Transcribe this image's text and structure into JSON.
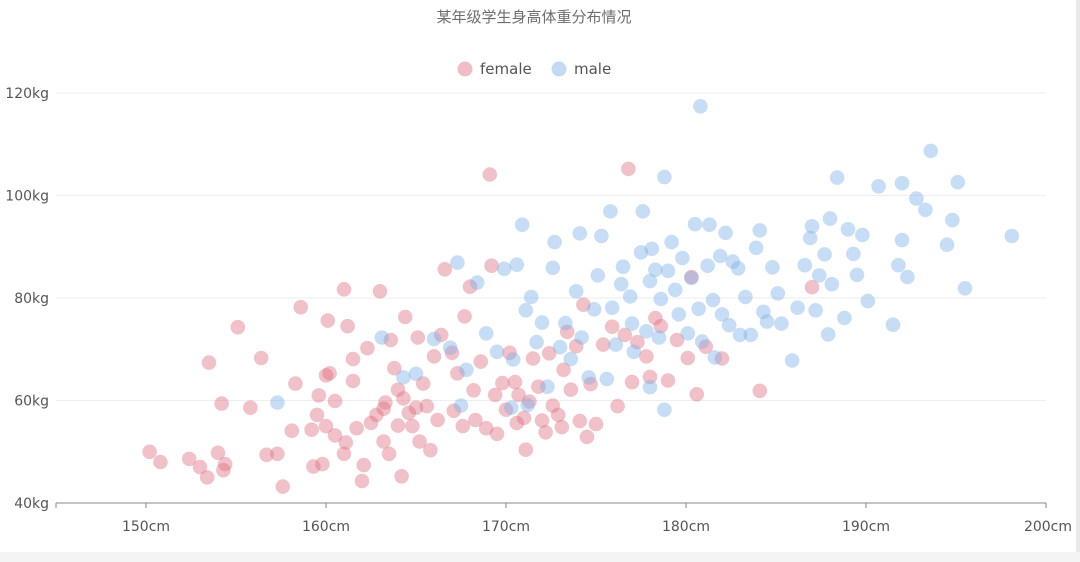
{
  "chart_data": {
    "type": "scatter",
    "title": "某年级学生身高体重分布情况",
    "legend_position": "top-center",
    "grid": true,
    "xlim": [
      145,
      200
    ],
    "ylim": [
      40,
      120
    ],
    "x_ticks": [
      150,
      160,
      170,
      180,
      190,
      200
    ],
    "y_ticks": [
      40,
      60,
      80,
      100,
      120
    ],
    "x_tick_labels": [
      "150cm",
      "160cm",
      "170cm",
      "180cm",
      "190cm",
      "200cm"
    ],
    "y_tick_labels": [
      "40kg",
      "60kg",
      "80kg",
      "100kg",
      "120kg"
    ],
    "colors": {
      "female": "#dd6b7f",
      "male": "#7aaee8"
    },
    "series": [
      {
        "name": "female",
        "color": "#dd6b7f",
        "points": [
          [
            150.2,
            50.0
          ],
          [
            150.8,
            48.0
          ],
          [
            152.4,
            48.6
          ],
          [
            153.0,
            47.0
          ],
          [
            153.4,
            45.0
          ],
          [
            154.0,
            49.8
          ],
          [
            154.4,
            47.6
          ],
          [
            154.3,
            46.4
          ],
          [
            153.5,
            67.4
          ],
          [
            154.2,
            59.4
          ],
          [
            155.1,
            74.3
          ],
          [
            155.8,
            58.6
          ],
          [
            156.4,
            68.3
          ],
          [
            156.7,
            49.4
          ],
          [
            157.3,
            49.6
          ],
          [
            157.6,
            43.2
          ],
          [
            158.1,
            54.1
          ],
          [
            158.3,
            63.3
          ],
          [
            158.6,
            78.2
          ],
          [
            159.2,
            54.3
          ],
          [
            159.3,
            47.1
          ],
          [
            159.5,
            57.2
          ],
          [
            159.6,
            61.0
          ],
          [
            159.8,
            47.6
          ],
          [
            160.0,
            64.9
          ],
          [
            160.2,
            65.3
          ],
          [
            160.0,
            55.0
          ],
          [
            160.1,
            75.6
          ],
          [
            160.5,
            53.2
          ],
          [
            160.5,
            59.9
          ],
          [
            161.0,
            81.7
          ],
          [
            161.2,
            74.5
          ],
          [
            161.0,
            49.6
          ],
          [
            161.1,
            51.8
          ],
          [
            161.5,
            68.1
          ],
          [
            161.5,
            63.8
          ],
          [
            161.7,
            54.6
          ],
          [
            162.0,
            44.3
          ],
          [
            162.3,
            70.2
          ],
          [
            162.1,
            47.4
          ],
          [
            162.5,
            55.6
          ],
          [
            162.8,
            57.2
          ],
          [
            163.0,
            81.3
          ],
          [
            163.2,
            52.0
          ],
          [
            163.2,
            58.4
          ],
          [
            163.3,
            59.6
          ],
          [
            163.5,
            49.6
          ],
          [
            163.6,
            71.8
          ],
          [
            163.8,
            66.3
          ],
          [
            164.0,
            55.1
          ],
          [
            164.0,
            62.1
          ],
          [
            164.2,
            45.2
          ],
          [
            164.3,
            60.4
          ],
          [
            164.4,
            76.3
          ],
          [
            164.6,
            57.6
          ],
          [
            164.8,
            55.0
          ],
          [
            165.0,
            58.6
          ],
          [
            165.1,
            72.3
          ],
          [
            165.2,
            52.0
          ],
          [
            165.4,
            63.3
          ],
          [
            165.6,
            58.9
          ],
          [
            165.8,
            50.3
          ],
          [
            166.0,
            68.6
          ],
          [
            166.2,
            56.2
          ],
          [
            166.4,
            72.8
          ],
          [
            166.6,
            85.6
          ],
          [
            167.0,
            69.3
          ],
          [
            167.1,
            58.0
          ],
          [
            167.3,
            65.3
          ],
          [
            167.6,
            55.0
          ],
          [
            167.7,
            76.4
          ],
          [
            168.0,
            82.2
          ],
          [
            168.2,
            62.0
          ],
          [
            168.3,
            56.2
          ],
          [
            168.6,
            67.6
          ],
          [
            168.9,
            54.6
          ],
          [
            169.1,
            104.1
          ],
          [
            169.2,
            86.3
          ],
          [
            169.4,
            61.1
          ],
          [
            169.5,
            53.5
          ],
          [
            169.8,
            63.4
          ],
          [
            170.0,
            58.2
          ],
          [
            170.2,
            69.3
          ],
          [
            170.5,
            63.6
          ],
          [
            170.6,
            55.6
          ],
          [
            170.7,
            61.1
          ],
          [
            171.0,
            56.6
          ],
          [
            171.1,
            50.4
          ],
          [
            171.3,
            59.8
          ],
          [
            171.5,
            68.2
          ],
          [
            171.8,
            62.7
          ],
          [
            172.0,
            56.1
          ],
          [
            172.2,
            53.8
          ],
          [
            172.4,
            69.2
          ],
          [
            172.6,
            59.0
          ],
          [
            172.9,
            57.2
          ],
          [
            173.1,
            54.8
          ],
          [
            173.2,
            66.0
          ],
          [
            173.4,
            73.4
          ],
          [
            173.6,
            62.1
          ],
          [
            173.9,
            70.6
          ],
          [
            174.1,
            56.0
          ],
          [
            174.3,
            78.7
          ],
          [
            174.5,
            52.9
          ],
          [
            174.7,
            63.2
          ],
          [
            175.0,
            55.4
          ],
          [
            175.4,
            70.9
          ],
          [
            175.9,
            74.4
          ],
          [
            176.2,
            58.9
          ],
          [
            176.6,
            72.8
          ],
          [
            176.8,
            105.2
          ],
          [
            177.0,
            63.6
          ],
          [
            177.3,
            71.4
          ],
          [
            177.8,
            68.6
          ],
          [
            178.0,
            64.6
          ],
          [
            178.3,
            76.1
          ],
          [
            178.6,
            74.5
          ],
          [
            179.0,
            63.9
          ],
          [
            179.5,
            71.8
          ],
          [
            180.1,
            68.3
          ],
          [
            180.3,
            84.1
          ],
          [
            180.6,
            61.2
          ],
          [
            181.1,
            70.5
          ],
          [
            182.0,
            68.2
          ],
          [
            184.1,
            61.9
          ],
          [
            187.0,
            82.1
          ]
        ]
      },
      {
        "name": "male",
        "color": "#7aaee8",
        "points": [
          [
            157.3,
            59.6
          ],
          [
            163.1,
            72.3
          ],
          [
            164.3,
            64.5
          ],
          [
            165.0,
            65.2
          ],
          [
            166.0,
            72.0
          ],
          [
            166.9,
            70.3
          ],
          [
            167.3,
            86.9
          ],
          [
            167.5,
            59.0
          ],
          [
            167.8,
            66.0
          ],
          [
            168.4,
            83.0
          ],
          [
            168.9,
            73.1
          ],
          [
            169.5,
            69.5
          ],
          [
            169.9,
            85.7
          ],
          [
            170.3,
            58.6
          ],
          [
            170.4,
            68.0
          ],
          [
            170.6,
            86.5
          ],
          [
            170.9,
            94.3
          ],
          [
            171.1,
            77.6
          ],
          [
            171.2,
            59.1
          ],
          [
            171.4,
            80.2
          ],
          [
            171.7,
            71.4
          ],
          [
            172.0,
            75.2
          ],
          [
            172.3,
            62.7
          ],
          [
            172.6,
            85.9
          ],
          [
            172.7,
            90.9
          ],
          [
            173.0,
            70.4
          ],
          [
            173.3,
            75.1
          ],
          [
            173.6,
            68.1
          ],
          [
            173.9,
            81.3
          ],
          [
            174.1,
            92.6
          ],
          [
            174.2,
            72.3
          ],
          [
            174.6,
            64.5
          ],
          [
            174.9,
            77.8
          ],
          [
            175.1,
            84.4
          ],
          [
            175.3,
            92.1
          ],
          [
            175.6,
            64.2
          ],
          [
            175.8,
            96.9
          ],
          [
            175.9,
            78.1
          ],
          [
            176.1,
            70.9
          ],
          [
            176.4,
            82.7
          ],
          [
            176.5,
            86.1
          ],
          [
            176.9,
            80.3
          ],
          [
            177.0,
            75.0
          ],
          [
            177.1,
            69.5
          ],
          [
            177.5,
            88.9
          ],
          [
            177.6,
            96.9
          ],
          [
            177.8,
            73.5
          ],
          [
            178.0,
            83.3
          ],
          [
            178.0,
            62.6
          ],
          [
            178.1,
            89.6
          ],
          [
            178.3,
            85.5
          ],
          [
            178.5,
            72.3
          ],
          [
            178.6,
            79.8
          ],
          [
            178.8,
            103.6
          ],
          [
            178.8,
            58.2
          ],
          [
            179.0,
            85.3
          ],
          [
            179.2,
            90.9
          ],
          [
            179.4,
            81.6
          ],
          [
            179.6,
            76.8
          ],
          [
            179.8,
            87.8
          ],
          [
            180.1,
            73.1
          ],
          [
            180.3,
            83.9
          ],
          [
            180.5,
            94.4
          ],
          [
            180.7,
            77.9
          ],
          [
            180.8,
            117.4
          ],
          [
            180.9,
            71.5
          ],
          [
            181.2,
            86.3
          ],
          [
            181.3,
            94.3
          ],
          [
            181.5,
            79.6
          ],
          [
            181.6,
            68.4
          ],
          [
            181.9,
            88.2
          ],
          [
            182.0,
            76.8
          ],
          [
            182.2,
            92.7
          ],
          [
            182.4,
            74.7
          ],
          [
            182.6,
            87.1
          ],
          [
            182.9,
            85.8
          ],
          [
            183.0,
            72.8
          ],
          [
            183.3,
            80.2
          ],
          [
            183.6,
            72.8
          ],
          [
            183.9,
            89.8
          ],
          [
            184.1,
            93.2
          ],
          [
            184.3,
            77.3
          ],
          [
            184.5,
            75.4
          ],
          [
            184.8,
            86.0
          ],
          [
            185.1,
            80.9
          ],
          [
            185.3,
            75.0
          ],
          [
            185.9,
            67.8
          ],
          [
            186.2,
            78.1
          ],
          [
            186.6,
            86.4
          ],
          [
            186.9,
            91.7
          ],
          [
            187.0,
            94.0
          ],
          [
            187.2,
            77.6
          ],
          [
            187.4,
            84.4
          ],
          [
            187.7,
            88.5
          ],
          [
            187.9,
            72.9
          ],
          [
            188.0,
            95.5
          ],
          [
            188.1,
            82.7
          ],
          [
            188.4,
            103.5
          ],
          [
            188.8,
            76.1
          ],
          [
            189.0,
            93.4
          ],
          [
            189.3,
            88.6
          ],
          [
            189.5,
            84.5
          ],
          [
            189.8,
            92.3
          ],
          [
            190.1,
            79.4
          ],
          [
            190.7,
            101.8
          ],
          [
            191.5,
            74.8
          ],
          [
            191.8,
            86.4
          ],
          [
            192.0,
            102.4
          ],
          [
            192.0,
            91.3
          ],
          [
            192.3,
            84.1
          ],
          [
            192.8,
            99.4
          ],
          [
            193.3,
            97.2
          ],
          [
            193.6,
            108.7
          ],
          [
            194.5,
            90.4
          ],
          [
            194.8,
            95.2
          ],
          [
            195.1,
            102.6
          ],
          [
            195.5,
            81.9
          ],
          [
            198.1,
            92.1
          ]
        ]
      }
    ]
  }
}
